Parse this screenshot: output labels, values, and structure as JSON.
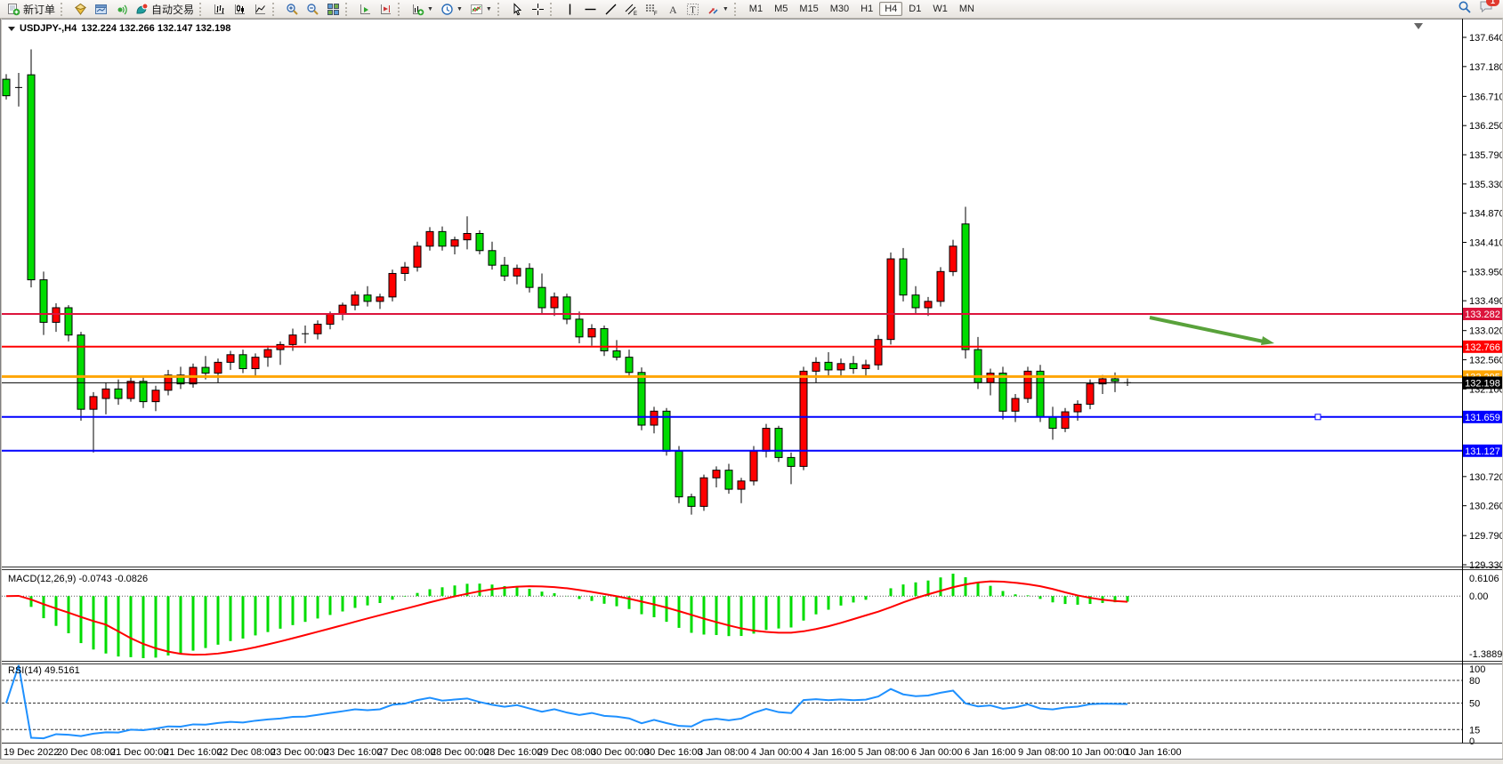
{
  "toolbar": {
    "new_order": "新订单",
    "auto_trading": "自动交易",
    "timeframe_buttons": [
      "M1",
      "M5",
      "M15",
      "M30",
      "H1",
      "H4",
      "D1",
      "W1",
      "MN"
    ],
    "active_timeframe": "H4",
    "notification_badge": "1",
    "icons": [
      "new-order",
      "metaeditor",
      "terminal",
      "signals",
      "auto-trading",
      "bar-chart",
      "candlestick-chart",
      "line-chart",
      "zoom-in",
      "zoom-out",
      "tile-windows",
      "auto-scroll",
      "chart-shift",
      "new-chart",
      "periods-clock",
      "indicators",
      "cursor",
      "crosshair",
      "vertical-line",
      "horizontal-line",
      "trendline",
      "equidistant-channel",
      "fibonacci",
      "text",
      "text-label",
      "arrows",
      "search",
      "notifications"
    ]
  },
  "chart_data": {
    "type": "candlestick",
    "symbol_title": "USDJPY-,H4",
    "ohlc_text": "132.224 132.266 132.147 132.198",
    "colors": {
      "bull_up": "#ff0000",
      "bear_down": "#00dc00",
      "outline": "#000000",
      "arrow": "#59a23b"
    },
    "price_axis_ticks": [
      "137.640",
      "137.180",
      "136.710",
      "136.250",
      "135.790",
      "135.330",
      "134.870",
      "134.410",
      "133.950",
      "133.490",
      "133.020",
      "132.560",
      "132.100",
      "130.720",
      "130.260",
      "129.790",
      "129.330"
    ],
    "horizontal_lines": [
      {
        "price": 133.282,
        "label": "133.282",
        "color": "#dc143c",
        "width": 2,
        "handle": false
      },
      {
        "price": 132.766,
        "label": "132.766",
        "color": "#ff0000",
        "width": 2,
        "handle": false
      },
      {
        "price": 132.295,
        "label": "132.295",
        "color": "#ffa500",
        "width": 3,
        "handle": false
      },
      {
        "price": 131.659,
        "label": "131.659",
        "color": "#0000ff",
        "width": 2,
        "handle": true
      },
      {
        "price": 131.127,
        "label": "131.127",
        "color": "#0000ff",
        "width": 2,
        "handle": false
      }
    ],
    "current_price": {
      "value": 132.198,
      "label": "132.198",
      "color": "#000000"
    },
    "time_ticks": [
      "19 Dec 2022",
      "20 Dec 08:00",
      "21 Dec 00:00",
      "21 Dec 16:00",
      "22 Dec 08:00",
      "23 Dec 00:00",
      "23 Dec 16:00",
      "27 Dec 08:00",
      "28 Dec 00:00",
      "28 Dec 16:00",
      "29 Dec 08:00",
      "30 Dec 00:00",
      "30 Dec 16:00",
      "3 Jan 08:00",
      "4 Jan 00:00",
      "4 Jan 16:00",
      "5 Jan 08:00",
      "6 Jan 00:00",
      "6 Jan 16:00",
      "9 Jan 08:00",
      "10 Jan 00:00",
      "10 Jan 16:00"
    ],
    "candles": [
      [
        136.98,
        137.06,
        136.66,
        136.72
      ],
      [
        136.86,
        137.08,
        136.55,
        136.85
      ],
      [
        137.05,
        137.45,
        133.7,
        133.82
      ],
      [
        133.82,
        133.95,
        132.95,
        133.15
      ],
      [
        133.15,
        133.45,
        133.0,
        133.38
      ],
      [
        133.38,
        133.42,
        132.85,
        132.95
      ],
      [
        132.95,
        133.0,
        131.6,
        131.78
      ],
      [
        131.78,
        132.05,
        131.1,
        131.98
      ],
      [
        131.95,
        132.2,
        131.7,
        132.1
      ],
      [
        132.1,
        132.25,
        131.85,
        131.95
      ],
      [
        131.95,
        132.3,
        131.9,
        132.22
      ],
      [
        132.22,
        132.28,
        131.8,
        131.9
      ],
      [
        131.9,
        132.15,
        131.75,
        132.08
      ],
      [
        132.08,
        132.4,
        132.0,
        132.32
      ],
      [
        132.32,
        132.45,
        132.1,
        132.18
      ],
      [
        132.18,
        132.5,
        132.12,
        132.44
      ],
      [
        132.44,
        132.62,
        132.25,
        132.35
      ],
      [
        132.35,
        132.58,
        132.2,
        132.52
      ],
      [
        132.52,
        132.7,
        132.4,
        132.64
      ],
      [
        132.64,
        132.72,
        132.35,
        132.42
      ],
      [
        132.42,
        132.66,
        132.3,
        132.6
      ],
      [
        132.6,
        132.78,
        132.45,
        132.72
      ],
      [
        132.72,
        132.85,
        132.48,
        132.8
      ],
      [
        132.8,
        133.05,
        132.7,
        132.95
      ],
      [
        132.95,
        133.1,
        132.82,
        132.97
      ],
      [
        132.97,
        133.18,
        132.88,
        133.12
      ],
      [
        133.12,
        133.32,
        133.04,
        133.28
      ],
      [
        133.28,
        133.46,
        133.18,
        133.42
      ],
      [
        133.42,
        133.64,
        133.34,
        133.58
      ],
      [
        133.58,
        133.72,
        133.4,
        133.48
      ],
      [
        133.48,
        133.6,
        133.36,
        133.55
      ],
      [
        133.55,
        133.98,
        133.48,
        133.92
      ],
      [
        133.92,
        134.1,
        133.8,
        134.02
      ],
      [
        134.02,
        134.42,
        133.95,
        134.35
      ],
      [
        134.35,
        134.65,
        134.28,
        134.58
      ],
      [
        134.58,
        134.66,
        134.28,
        134.35
      ],
      [
        134.35,
        134.5,
        134.22,
        134.45
      ],
      [
        134.45,
        134.82,
        134.3,
        134.55
      ],
      [
        134.55,
        134.6,
        134.22,
        134.28
      ],
      [
        134.28,
        134.42,
        133.98,
        134.05
      ],
      [
        134.05,
        134.18,
        133.8,
        133.88
      ],
      [
        133.88,
        134.06,
        133.75,
        134.0
      ],
      [
        134.0,
        134.08,
        133.62,
        133.7
      ],
      [
        133.7,
        133.92,
        133.28,
        133.38
      ],
      [
        133.38,
        133.62,
        133.25,
        133.55
      ],
      [
        133.55,
        133.6,
        133.12,
        133.2
      ],
      [
        133.2,
        133.32,
        132.82,
        132.92
      ],
      [
        132.92,
        133.12,
        132.78,
        133.05
      ],
      [
        133.05,
        133.1,
        132.62,
        132.7
      ],
      [
        132.7,
        132.87,
        132.55,
        132.6
      ],
      [
        132.6,
        132.72,
        132.28,
        132.36
      ],
      [
        132.36,
        132.44,
        131.45,
        131.53
      ],
      [
        131.53,
        131.82,
        131.4,
        131.75
      ],
      [
        131.75,
        131.8,
        131.05,
        131.12
      ],
      [
        131.12,
        131.2,
        130.3,
        130.4
      ],
      [
        130.4,
        130.45,
        130.12,
        130.25
      ],
      [
        130.25,
        130.75,
        130.18,
        130.7
      ],
      [
        130.7,
        130.88,
        130.55,
        130.82
      ],
      [
        130.82,
        130.92,
        130.45,
        130.52
      ],
      [
        130.52,
        130.7,
        130.3,
        130.65
      ],
      [
        130.65,
        131.2,
        130.58,
        131.12
      ],
      [
        131.12,
        131.55,
        131.02,
        131.48
      ],
      [
        131.48,
        131.52,
        130.95,
        131.02
      ],
      [
        131.02,
        131.1,
        130.6,
        130.88
      ],
      [
        130.88,
        132.45,
        130.82,
        132.38
      ],
      [
        132.38,
        132.6,
        132.2,
        132.52
      ],
      [
        132.52,
        132.68,
        132.3,
        132.4
      ],
      [
        132.4,
        132.58,
        132.28,
        132.5
      ],
      [
        132.5,
        132.62,
        132.34,
        132.42
      ],
      [
        132.42,
        132.56,
        132.3,
        132.48
      ],
      [
        132.48,
        132.95,
        132.4,
        132.88
      ],
      [
        132.88,
        134.25,
        132.8,
        134.15
      ],
      [
        134.15,
        134.32,
        133.48,
        133.58
      ],
      [
        133.58,
        133.72,
        133.28,
        133.38
      ],
      [
        133.38,
        133.55,
        133.25,
        133.48
      ],
      [
        133.48,
        134.02,
        133.4,
        133.95
      ],
      [
        133.95,
        134.45,
        133.88,
        134.35
      ],
      [
        134.7,
        134.97,
        132.58,
        132.72
      ],
      [
        132.72,
        132.92,
        132.1,
        132.2
      ],
      [
        132.2,
        132.42,
        132.0,
        132.35
      ],
      [
        132.35,
        132.45,
        131.62,
        131.75
      ],
      [
        131.75,
        132.02,
        131.58,
        131.95
      ],
      [
        131.95,
        132.45,
        131.88,
        132.38
      ],
      [
        132.38,
        132.48,
        131.58,
        131.66
      ],
      [
        131.66,
        131.82,
        131.3,
        131.48
      ],
      [
        131.48,
        131.8,
        131.42,
        131.74
      ],
      [
        131.74,
        131.92,
        131.6,
        131.86
      ],
      [
        131.86,
        132.25,
        131.78,
        132.18
      ],
      [
        132.18,
        132.32,
        132.02,
        132.26
      ],
      [
        132.26,
        132.36,
        132.05,
        132.22
      ],
      [
        132.224,
        132.266,
        132.147,
        132.198
      ]
    ],
    "indicators": {
      "macd": {
        "name": "MACD(12,26,9)",
        "values": "-0.0743 -0.0826",
        "fast": 12,
        "slow": 26,
        "signal": 9,
        "axis_max": "0.6106",
        "axis_zero": "0.00",
        "axis_min": "-1.3889",
        "histogram_color": "#00dc00",
        "signal_color": "#ff0000"
      },
      "rsi": {
        "name": "RSI(14)",
        "value": "49.5161",
        "period": 14,
        "axis_levels": [
          "100",
          "80",
          "50",
          "15",
          "0"
        ],
        "dashed_levels": [
          80,
          50,
          15
        ],
        "line_color": "#1e90ff"
      }
    }
  }
}
